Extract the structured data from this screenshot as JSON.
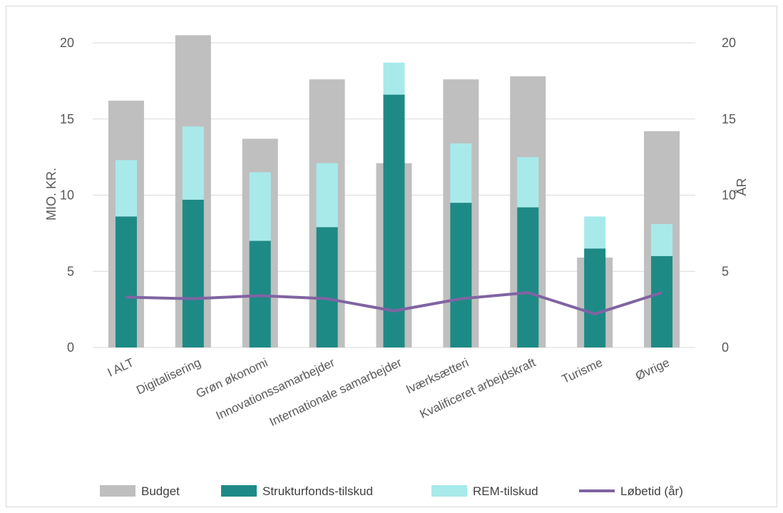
{
  "chart_data": {
    "type": "bar",
    "categories": [
      "I ALT",
      "Digitalisering",
      "Grøn økonomi",
      "Innovationssamarbejder",
      "Internationale samarbejder",
      "Iværksætteri",
      "Kvalificeret arbejdskraft",
      "Turisme",
      "Øvrige"
    ],
    "series": [
      {
        "name": "Budget",
        "kind": "bar-background",
        "axis": "left",
        "color": "#bfbfbf",
        "values": [
          16.2,
          20.5,
          13.7,
          17.6,
          12.1,
          17.6,
          17.8,
          5.9,
          14.2
        ]
      },
      {
        "name": "Strukturfonds-tilskud",
        "kind": "bar-stacked",
        "axis": "left",
        "color": "#1e8a86",
        "values": [
          8.6,
          9.7,
          7.0,
          7.9,
          16.6,
          9.5,
          9.2,
          6.5,
          6.0
        ]
      },
      {
        "name": "REM-tilskud",
        "kind": "bar-stacked",
        "axis": "left",
        "color": "#a8eaea",
        "values": [
          3.7,
          4.8,
          4.5,
          4.2,
          2.1,
          3.9,
          3.3,
          2.1,
          2.1
        ]
      },
      {
        "name": "Løbetid (år)",
        "kind": "line",
        "axis": "right",
        "color": "#8064a2",
        "values": [
          3.3,
          3.2,
          3.4,
          3.2,
          2.4,
          3.2,
          3.6,
          2.2,
          3.6
        ]
      }
    ],
    "ylabel": "MIO. KR.",
    "y2label": "ÅR",
    "ylim": [
      0,
      20
    ],
    "y2lim": [
      0,
      20
    ],
    "yticks": [
      "0",
      "5",
      "10",
      "15",
      "20"
    ],
    "y2ticks": [
      "0",
      "5",
      "10",
      "15",
      "20"
    ],
    "grid": true,
    "legend_position": "bottom"
  }
}
